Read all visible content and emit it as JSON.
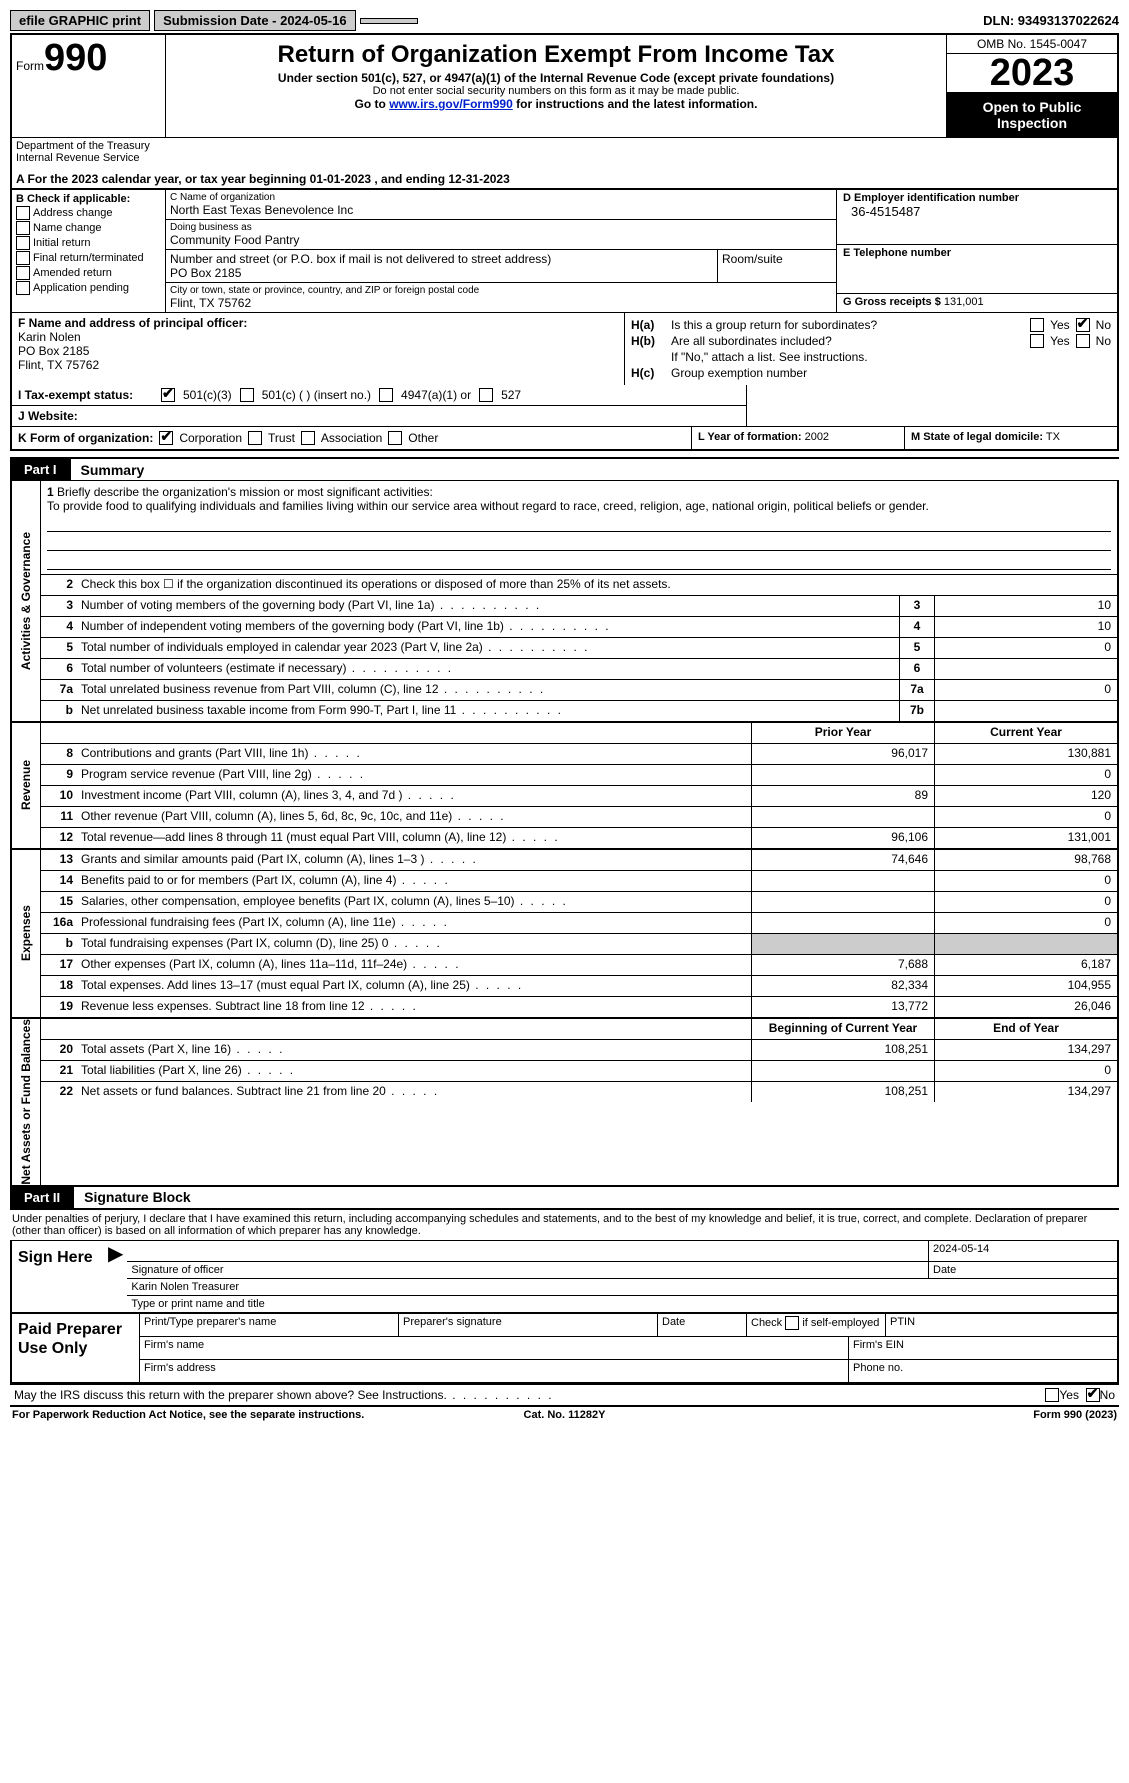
{
  "topbar": {
    "efile": "efile GRAPHIC print",
    "submission": "Submission Date - 2024-05-16",
    "dln": "DLN: 93493137022624"
  },
  "header": {
    "form_word": "Form",
    "form_num": "990",
    "title": "Return of Organization Exempt From Income Tax",
    "sub1": "Under section 501(c), 527, or 4947(a)(1) of the Internal Revenue Code (except private foundations)",
    "sub2": "Do not enter social security numbers on this form as it may be made public.",
    "sub3_pre": "Go to ",
    "sub3_link": "www.irs.gov/Form990",
    "sub3_post": " for instructions and the latest information.",
    "omb": "OMB No. 1545-0047",
    "year": "2023",
    "open": "Open to Public Inspection",
    "dept": "Department of the Treasury\nInternal Revenue Service"
  },
  "lineA": "A  For the 2023 calendar year, or tax year beginning 01-01-2023   , and ending 12-31-2023",
  "colB": {
    "header": "B Check if applicable:",
    "opts": [
      "Address change",
      "Name change",
      "Initial return",
      "Final return/terminated",
      "Amended return",
      "Application pending"
    ]
  },
  "colC": {
    "name_lbl": "C Name of organization",
    "name_val": "North East Texas Benevolence Inc",
    "dba_lbl": "Doing business as",
    "dba_val": "Community Food Pantry",
    "street_lbl": "Number and street (or P.O. box if mail is not delivered to street address)",
    "street_val": "PO Box 2185",
    "room_lbl": "Room/suite",
    "city_lbl": "City or town, state or province, country, and ZIP or foreign postal code",
    "city_val": "Flint, TX  75762"
  },
  "colD": {
    "ein_lbl": "D Employer identification number",
    "ein_val": "36-4515487",
    "tel_lbl": "E Telephone number",
    "tel_val": "",
    "gross_lbl": "G Gross receipts $",
    "gross_val": "131,001"
  },
  "rowF": {
    "lbl": "F  Name and address of principal officer:",
    "name": "Karin Nolen",
    "addr1": "PO Box 2185",
    "addr2": "Flint, TX  75762"
  },
  "rowH": {
    "ha_lbl": "H(a)",
    "ha_text": "Is this a group return for subordinates?",
    "hb_lbl": "H(b)",
    "hb_text": "Are all subordinates included?",
    "hb_note": "If \"No,\" attach a list. See instructions.",
    "hc_lbl": "H(c)",
    "hc_text": "Group exemption number",
    "yes": "Yes",
    "no": "No"
  },
  "rowI": {
    "lbl": "I  Tax-exempt status:",
    "o1": "501(c)(3)",
    "o2": "501(c) (  ) (insert no.)",
    "o3": "4947(a)(1) or",
    "o4": "527"
  },
  "rowJ": {
    "lbl": "J  Website:",
    "val": ""
  },
  "rowK": {
    "lbl": "K Form of organization:",
    "o1": "Corporation",
    "o2": "Trust",
    "o3": "Association",
    "o4": "Other"
  },
  "rowL": {
    "lbl": "L Year of formation:",
    "val": "2002"
  },
  "rowM": {
    "lbl": "M State of legal domicile:",
    "val": "TX"
  },
  "part1": {
    "tab": "Part I",
    "title": "Summary"
  },
  "vtabs": {
    "ag": "Activities & Governance",
    "rev": "Revenue",
    "exp": "Expenses",
    "net": "Net Assets or Fund Balances"
  },
  "mission": {
    "num": "1",
    "lbl": "Briefly describe the organization's mission or most significant activities:",
    "text": "To provide food to qualifying individuals and families living within our service area without regard to race, creed, religion, age, national origin, political beliefs or gender."
  },
  "ag_rows": [
    {
      "num": "2",
      "desc": "Check this box ☐ if the organization discontinued its operations or disposed of more than 25% of its net assets.",
      "box": "",
      "val": ""
    },
    {
      "num": "3",
      "desc": "Number of voting members of the governing body (Part VI, line 1a)",
      "box": "3",
      "val": "10"
    },
    {
      "num": "4",
      "desc": "Number of independent voting members of the governing body (Part VI, line 1b)",
      "box": "4",
      "val": "10"
    },
    {
      "num": "5",
      "desc": "Total number of individuals employed in calendar year 2023 (Part V, line 2a)",
      "box": "5",
      "val": "0"
    },
    {
      "num": "6",
      "desc": "Total number of volunteers (estimate if necessary)",
      "box": "6",
      "val": ""
    },
    {
      "num": "7a",
      "desc": "Total unrelated business revenue from Part VIII, column (C), line 12",
      "box": "7a",
      "val": "0"
    },
    {
      "num": "b",
      "desc": "Net unrelated business taxable income from Form 990-T, Part I, line 11",
      "box": "7b",
      "val": ""
    }
  ],
  "rev_hdr": {
    "prior": "Prior Year",
    "current": "Current Year"
  },
  "rev_rows": [
    {
      "num": "8",
      "desc": "Contributions and grants (Part VIII, line 1h)",
      "p": "96,017",
      "c": "130,881"
    },
    {
      "num": "9",
      "desc": "Program service revenue (Part VIII, line 2g)",
      "p": "",
      "c": "0"
    },
    {
      "num": "10",
      "desc": "Investment income (Part VIII, column (A), lines 3, 4, and 7d )",
      "p": "89",
      "c": "120"
    },
    {
      "num": "11",
      "desc": "Other revenue (Part VIII, column (A), lines 5, 6d, 8c, 9c, 10c, and 11e)",
      "p": "",
      "c": "0"
    },
    {
      "num": "12",
      "desc": "Total revenue—add lines 8 through 11 (must equal Part VIII, column (A), line 12)",
      "p": "96,106",
      "c": "131,001"
    }
  ],
  "exp_rows": [
    {
      "num": "13",
      "desc": "Grants and similar amounts paid (Part IX, column (A), lines 1–3 )",
      "p": "74,646",
      "c": "98,768"
    },
    {
      "num": "14",
      "desc": "Benefits paid to or for members (Part IX, column (A), line 4)",
      "p": "",
      "c": "0"
    },
    {
      "num": "15",
      "desc": "Salaries, other compensation, employee benefits (Part IX, column (A), lines 5–10)",
      "p": "",
      "c": "0"
    },
    {
      "num": "16a",
      "desc": "Professional fundraising fees (Part IX, column (A), line 11e)",
      "p": "",
      "c": "0"
    },
    {
      "num": "b",
      "desc": "Total fundraising expenses (Part IX, column (D), line 25) 0",
      "p": "shade",
      "c": "shade"
    },
    {
      "num": "17",
      "desc": "Other expenses (Part IX, column (A), lines 11a–11d, 11f–24e)",
      "p": "7,688",
      "c": "6,187"
    },
    {
      "num": "18",
      "desc": "Total expenses. Add lines 13–17 (must equal Part IX, column (A), line 25)",
      "p": "82,334",
      "c": "104,955"
    },
    {
      "num": "19",
      "desc": "Revenue less expenses. Subtract line 18 from line 12",
      "p": "13,772",
      "c": "26,046"
    }
  ],
  "net_hdr": {
    "begin": "Beginning of Current Year",
    "end": "End of Year"
  },
  "net_rows": [
    {
      "num": "20",
      "desc": "Total assets (Part X, line 16)",
      "p": "108,251",
      "c": "134,297"
    },
    {
      "num": "21",
      "desc": "Total liabilities (Part X, line 26)",
      "p": "",
      "c": "0"
    },
    {
      "num": "22",
      "desc": "Net assets or fund balances. Subtract line 21 from line 20",
      "p": "108,251",
      "c": "134,297"
    }
  ],
  "part2": {
    "tab": "Part II",
    "title": "Signature Block"
  },
  "sig_declaration": "Under penalties of perjury, I declare that I have examined this return, including accompanying schedules and statements, and to the best of my knowledge and belief, it is true, correct, and complete. Declaration of preparer (other than officer) is based on all information of which preparer has any knowledge.",
  "sign": {
    "lbl": "Sign Here",
    "sig_of_officer": "Signature of officer",
    "date_val": "2024-05-14",
    "date_lbl": "Date",
    "name_title": "Karin Nolen  Treasurer",
    "type_lbl": "Type or print name and title"
  },
  "paid": {
    "lbl": "Paid Preparer Use Only",
    "r1": {
      "c1": "Print/Type preparer's name",
      "c2": "Preparer's signature",
      "c3": "Date",
      "c4_pre": "Check",
      "c4_post": "if self-employed",
      "c5": "PTIN"
    },
    "r2": {
      "c1": "Firm's name",
      "c2": "Firm's EIN"
    },
    "r3": {
      "c1": "Firm's address",
      "c2": "Phone no."
    }
  },
  "bottom_q": "May the IRS discuss this return with the preparer shown above? See Instructions.",
  "footer": {
    "l": "For Paperwork Reduction Act Notice, see the separate instructions.",
    "m": "Cat. No. 11282Y",
    "r": "Form 990 (2023)"
  }
}
